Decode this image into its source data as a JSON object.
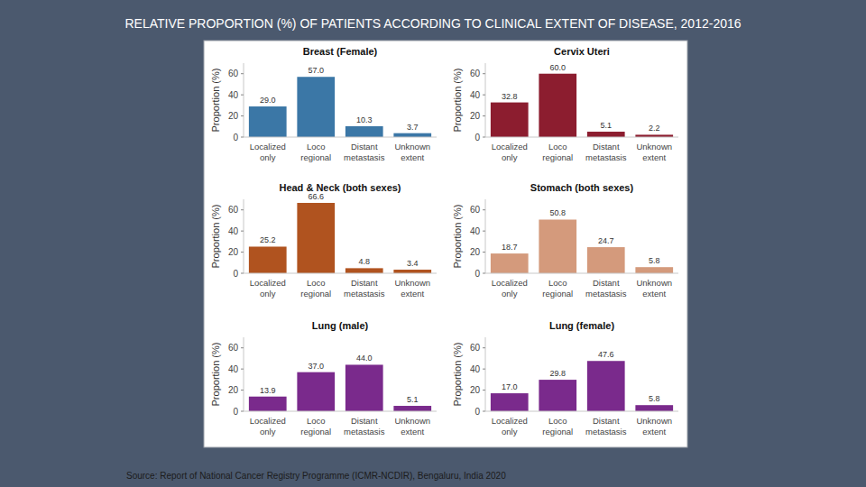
{
  "title": "RELATIVE PROPORTION (%) OF PATIENTS ACCORDING TO CLINICAL EXTENT OF DISEASE, 2012-2016",
  "source": "Source: Report of National Cancer Registry Programme (ICMR-NCDIR), Bengaluru, India 2020",
  "chart_data": [
    {
      "type": "bar",
      "title": "Breast (Female)",
      "y_label": "Proportion (%)",
      "categories": [
        "Localized only",
        "Loco regional",
        "Distant metastasis",
        "Unknown extent"
      ],
      "values": [
        29.0,
        57.0,
        10.3,
        3.7
      ],
      "value_labels": [
        "29.0",
        "57.0",
        "10.3",
        "3.7"
      ],
      "color": "#3b77a6",
      "ylim": [
        0,
        70
      ],
      "yticks": [
        0,
        20,
        40,
        60
      ],
      "grid": false,
      "data_labels": true
    },
    {
      "type": "bar",
      "title": "Cervix Uteri",
      "y_label": "Proportion (%)",
      "categories": [
        "Localized only",
        "Loco regional",
        "Distant metastasis",
        "Unknown extent"
      ],
      "values": [
        32.8,
        60.0,
        5.1,
        2.2
      ],
      "value_labels": [
        "32.8",
        "60.0",
        "5.1",
        "2.2"
      ],
      "color": "#8c1d2f",
      "ylim": [
        0,
        70
      ],
      "yticks": [
        0,
        20,
        40,
        60
      ],
      "grid": false,
      "data_labels": true
    },
    {
      "type": "bar",
      "title": "Head & Neck (both sexes)",
      "y_label": "Proportion (%)",
      "categories": [
        "Localized only",
        "Loco regional",
        "Distant metastasis",
        "Unknown extent"
      ],
      "values": [
        25.2,
        66.6,
        4.8,
        3.4
      ],
      "value_labels": [
        "25.2",
        "66.6",
        "4.8",
        "3.4"
      ],
      "color": "#b0531f",
      "ylim": [
        0,
        70
      ],
      "yticks": [
        0,
        20,
        40,
        60
      ],
      "grid": false,
      "data_labels": true
    },
    {
      "type": "bar",
      "title": "Stomach (both sexes)",
      "y_label": "Proportion (%)",
      "categories": [
        "Localized only",
        "Loco regional",
        "Distant metastasis",
        "Unknown extent"
      ],
      "values": [
        18.7,
        50.8,
        24.7,
        5.8
      ],
      "value_labels": [
        "18.7",
        "50.8",
        "24.7",
        "5.8"
      ],
      "color": "#d49a7c",
      "ylim": [
        0,
        70
      ],
      "yticks": [
        0,
        20,
        40,
        60
      ],
      "grid": false,
      "data_labels": true
    },
    {
      "type": "bar",
      "title": "Lung (male)",
      "y_label": "Proportion (%)",
      "categories": [
        "Localized only",
        "Loco regional",
        "Distant metastasis",
        "Unknown extent"
      ],
      "values": [
        13.9,
        37.0,
        44.0,
        5.1
      ],
      "value_labels": [
        "13.9",
        "37.0",
        "44.0",
        "5.1"
      ],
      "color": "#7a2a8c",
      "ylim": [
        0,
        70
      ],
      "yticks": [
        0,
        20,
        40,
        60
      ],
      "grid": false,
      "data_labels": true
    },
    {
      "type": "bar",
      "title": "Lung (female)",
      "y_label": "Proportion (%)",
      "categories": [
        "Localized only",
        "Loco regional",
        "Distant metastasis",
        "Unknown extent"
      ],
      "values": [
        17.0,
        29.8,
        47.6,
        5.8
      ],
      "value_labels": [
        "17.0",
        "29.8",
        "47.6",
        "5.8"
      ],
      "color": "#7a2a8c",
      "ylim": [
        0,
        70
      ],
      "yticks": [
        0,
        20,
        40,
        60
      ],
      "grid": false,
      "data_labels": true
    }
  ]
}
